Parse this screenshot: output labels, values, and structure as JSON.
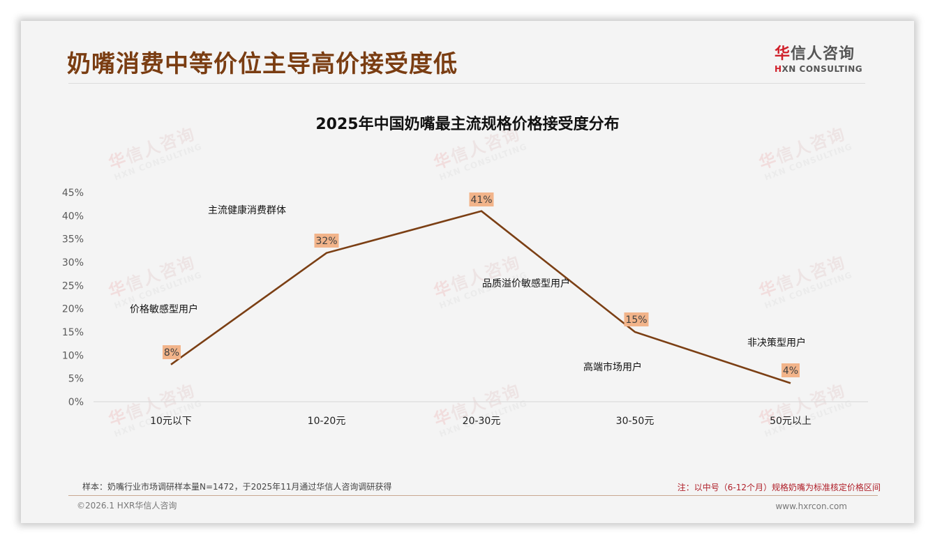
{
  "header": {
    "title": "奶嘴消费中等价位主导高价接受度低",
    "logo": {
      "cn_accent": "华",
      "cn_rest": "信人咨询",
      "en_accent": "H",
      "en_rest": "XN CONSULTING"
    }
  },
  "watermark": {
    "cn_accent": "华",
    "cn_rest": "信人咨询",
    "en": "HXN CONSULTING"
  },
  "chart_data": {
    "type": "line",
    "title": "2025年中国奶嘴最主流规格价格接受度分布",
    "xlabel": "",
    "ylabel": "",
    "categories": [
      "10元以下",
      "10-20元",
      "20-30元",
      "30-50元",
      "50元以上"
    ],
    "values": [
      8,
      32,
      41,
      15,
      4
    ],
    "value_labels": [
      "8%",
      "32%",
      "41%",
      "15%",
      "4%"
    ],
    "ylim": [
      0,
      45
    ],
    "yticks": [
      "0%",
      "5%",
      "10%",
      "15%",
      "20%",
      "25%",
      "30%",
      "35%",
      "40%",
      "45%"
    ],
    "grid": false,
    "legend": null,
    "line_color": "#7b3f14",
    "label_bg_color": "#f2b48a",
    "annotations": [
      {
        "text": "价格敏感型用户",
        "near": "10元以下"
      },
      {
        "text": "主流健康消费群体",
        "near": "10-20元"
      },
      {
        "text": "品质溢价敏感型用户",
        "near": "20-30元"
      },
      {
        "text": "高端市场用户",
        "near": "30-50元"
      },
      {
        "text": "非决策型用户",
        "near": "50元以上"
      }
    ]
  },
  "footer": {
    "sample_note": "样本：奶嘴行业市场调研样本量N=1472，于2025年11月通过华信人咨询调研获得",
    "spec_note": "注：以中号（6-12个月）规格奶嘴为标准核定价格区间",
    "copyright": "©2026.1 HXR华信人咨询",
    "website": "www.hxrcon.com"
  }
}
